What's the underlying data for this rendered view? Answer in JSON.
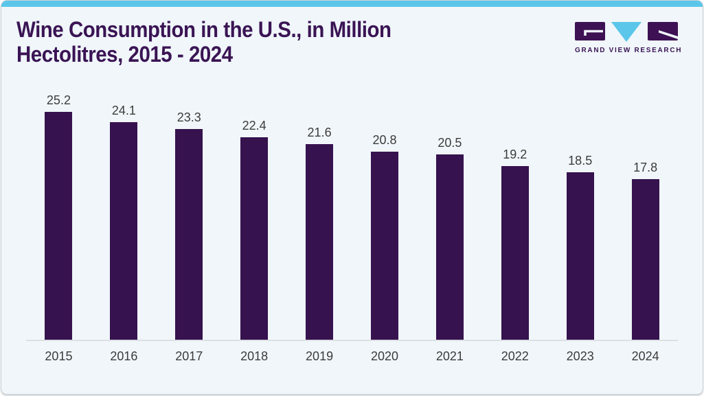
{
  "header": {
    "title_line1": "Wine Consumption in the U.S., in Million",
    "title_line2": "Hectolitres, 2015 - 2024",
    "logo_wordmark": "GRAND VIEW RESEARCH"
  },
  "colors": {
    "background": "#f0f6fa",
    "accent_strip": "#5bc6ea",
    "title": "#3a1454",
    "bar": "#36124e",
    "label": "#3b3b3b",
    "axis_line": "#dcdfe3",
    "logo_purple": "#3d1153",
    "logo_blue": "#5bc6ea"
  },
  "chart_data": {
    "type": "bar",
    "title": "Wine Consumption in the U.S., in Million Hectolitres, 2015 - 2024",
    "categories": [
      "2015",
      "2016",
      "2017",
      "2018",
      "2019",
      "2020",
      "2021",
      "2022",
      "2023",
      "2024"
    ],
    "values": [
      25.2,
      24.1,
      23.3,
      22.4,
      21.6,
      20.8,
      20.5,
      19.2,
      18.5,
      17.8
    ],
    "unit": "Million Hectolitres",
    "xlabel": "",
    "ylabel": "",
    "ylim": [
      0,
      25.2
    ],
    "bar_color": "#36124e",
    "data_labels": true,
    "grid": false,
    "legend": false
  }
}
